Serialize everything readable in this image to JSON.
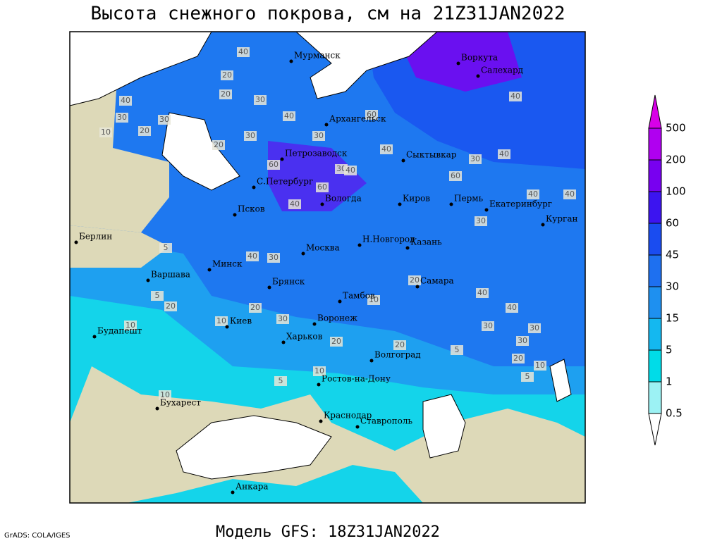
{
  "title": "Высота снежного покрова, см на 21Z31JAN2022",
  "subtitle": "Модель GFS: 18Z31JAN2022",
  "credit": "GrADS: COLA/IGES",
  "legend": {
    "levels": [
      0.5,
      1,
      5,
      15,
      30,
      45,
      60,
      100,
      200,
      500
    ],
    "colors": [
      "#ffffff",
      "#9cf2f4",
      "#00dce8",
      "#14b8f0",
      "#1e90f0",
      "#1e70f0",
      "#1a4cf0",
      "#3c14f0",
      "#7800f0",
      "#b000f0",
      "#d800e8"
    ]
  },
  "cities": [
    "Мурманск",
    "Воркута",
    "Салехард",
    "Архангельск",
    "Петрозаводск",
    "Сыктывкар",
    "С.Петербург",
    "Псков",
    "Вологда",
    "Киров",
    "Пермь",
    "Екатеринбург",
    "Курган",
    "Берлин",
    "Москва",
    "Н.Новгород",
    "Казань",
    "Минск",
    "Варшава",
    "Брянск",
    "Тамбов",
    "Самара",
    "Киев",
    "Воронеж",
    "Будапешт",
    "Харьков",
    "Волгоград",
    "Ростов-на-Дону",
    "Бухарест",
    "Краснодар",
    "Ставрополь",
    "Анкара"
  ],
  "contour_labels": [
    40,
    20,
    30,
    40,
    30,
    20,
    10,
    30,
    20,
    40,
    30,
    20,
    60,
    40,
    60,
    30,
    30,
    60,
    40,
    40,
    60,
    30,
    40,
    30,
    40,
    5,
    20,
    10,
    30,
    5,
    10,
    40,
    30,
    20,
    30,
    20,
    5,
    10,
    5,
    10,
    40,
    40,
    30,
    30,
    40,
    20,
    10,
    5,
    20,
    10,
    40,
    20
  ]
}
